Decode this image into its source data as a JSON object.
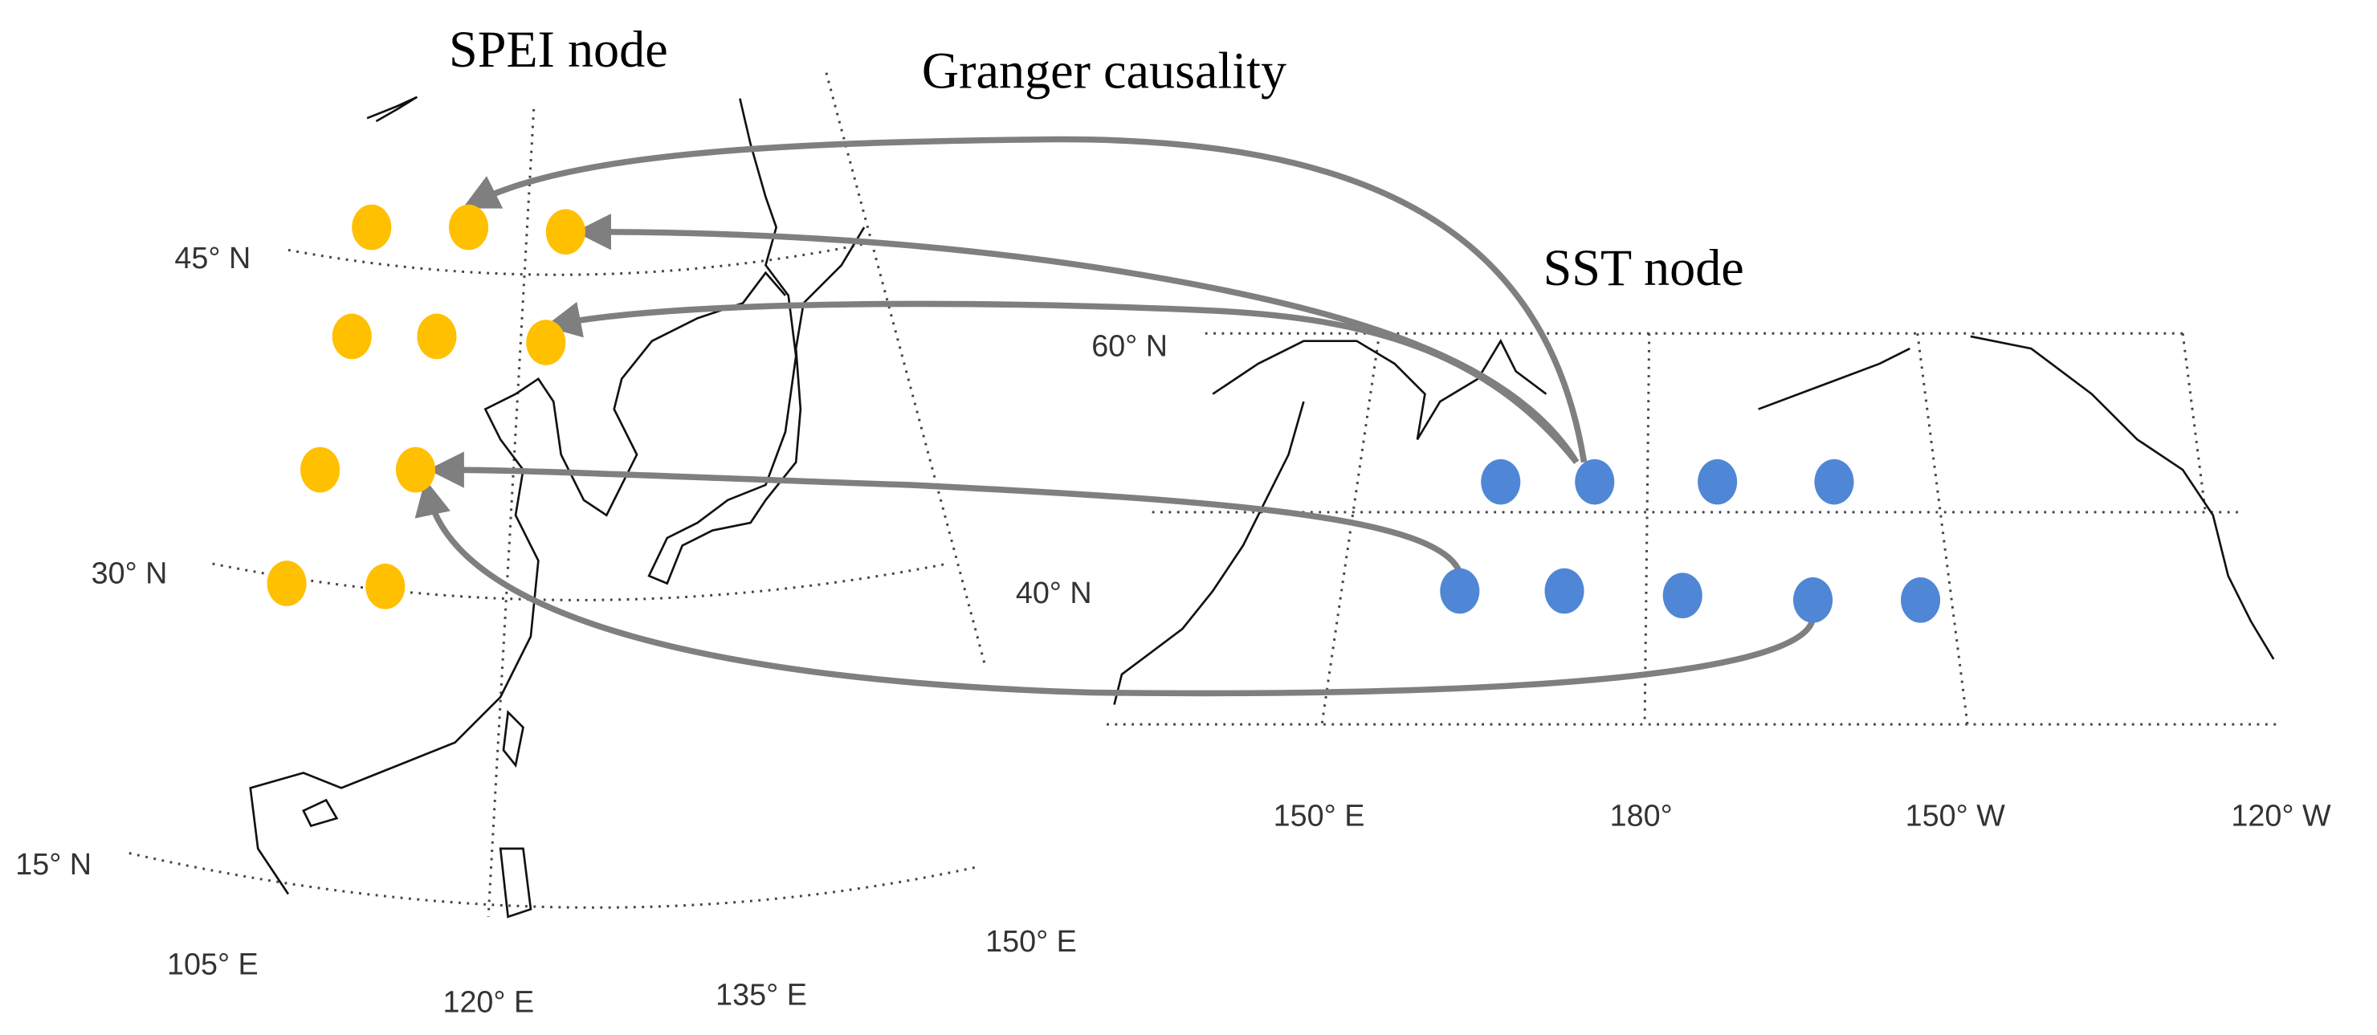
{
  "title_labels": {
    "spei_node": "SPEI node",
    "granger_causality": "Granger causality",
    "sst_node": "SST node"
  },
  "left_map": {
    "lat_labels": [
      "45° N",
      "30° N",
      "15° N"
    ],
    "lon_labels": [
      "105° E",
      "120° E",
      "135° E",
      "150° E"
    ]
  },
  "right_map": {
    "lat_labels": [
      "60° N",
      "40° N"
    ],
    "lon_labels": [
      "150° E",
      "180°",
      "150° W",
      "120° W"
    ]
  }
}
